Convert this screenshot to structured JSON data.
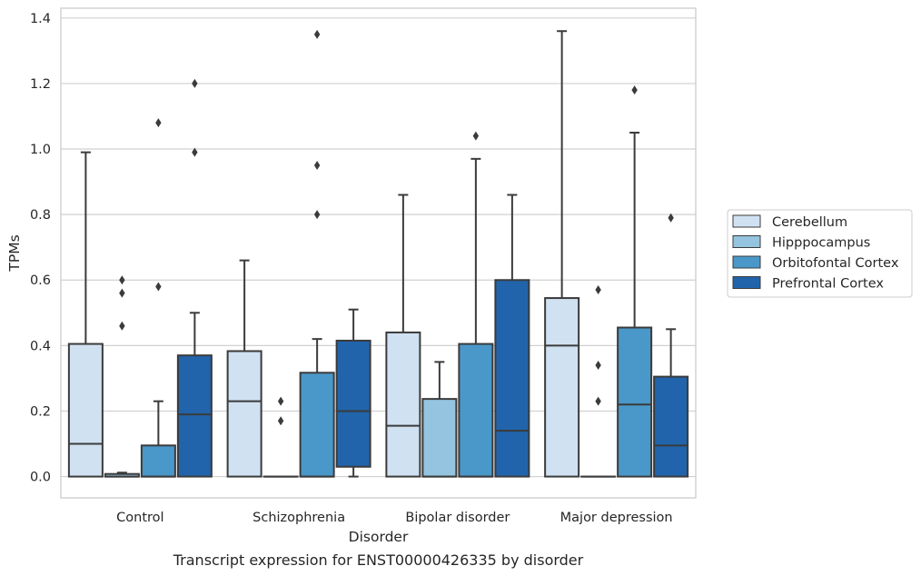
{
  "chart_data": {
    "type": "box",
    "caption": "Transcript expression for ENST00000426335 by disorder",
    "xlabel": "Disorder",
    "ylabel": "TPMs",
    "ylim": [
      -0.065,
      1.43
    ],
    "yticks": [
      0.0,
      0.2,
      0.4,
      0.6,
      0.8,
      1.0,
      1.2,
      1.4
    ],
    "ytick_labels": [
      "0.0",
      "0.2",
      "0.4",
      "0.6",
      "0.8",
      "1.0",
      "1.2",
      "1.4"
    ],
    "grid": "horizontal",
    "legend_position": "right",
    "categories": [
      "Control",
      "Schizophrenia",
      "Bipolar disorder",
      "Major depression"
    ],
    "series": [
      {
        "name": "Cerebellum",
        "color": "#d0e1f2",
        "boxes": [
          {
            "q1": 0.0,
            "median": 0.1,
            "q3": 0.405,
            "whisker_low": 0.0,
            "whisker_high": 0.99,
            "outliers": []
          },
          {
            "q1": 0.0,
            "median": 0.23,
            "q3": 0.383,
            "whisker_low": 0.0,
            "whisker_high": 0.66,
            "outliers": []
          },
          {
            "q1": 0.0,
            "median": 0.155,
            "q3": 0.44,
            "whisker_low": 0.0,
            "whisker_high": 0.86,
            "outliers": []
          },
          {
            "q1": 0.0,
            "median": 0.4,
            "q3": 0.545,
            "whisker_low": 0.0,
            "whisker_high": 1.36,
            "outliers": []
          }
        ]
      },
      {
        "name": "Hipppocampus",
        "color": "#94c4df",
        "boxes": [
          {
            "q1": 0.0,
            "median": 0.0,
            "q3": 0.008,
            "whisker_low": 0.0,
            "whisker_high": 0.012,
            "outliers": [
              0.46,
              0.56,
              0.6
            ]
          },
          {
            "q1": 0.0,
            "median": 0.0,
            "q3": 0.0,
            "whisker_low": 0.0,
            "whisker_high": 0.0,
            "outliers": [
              0.17,
              0.23
            ]
          },
          {
            "q1": 0.0,
            "median": 0.0,
            "q3": 0.237,
            "whisker_low": 0.0,
            "whisker_high": 0.35,
            "outliers": []
          },
          {
            "q1": 0.0,
            "median": 0.0,
            "q3": 0.0,
            "whisker_low": 0.0,
            "whisker_high": 0.0,
            "outliers": [
              0.23,
              0.34,
              0.57
            ]
          }
        ]
      },
      {
        "name": "Orbitofontal Cortex",
        "color": "#4a98c9",
        "boxes": [
          {
            "q1": 0.0,
            "median": 0.0,
            "q3": 0.095,
            "whisker_low": 0.0,
            "whisker_high": 0.23,
            "outliers": [
              0.58,
              1.08
            ]
          },
          {
            "q1": 0.0,
            "median": 0.0,
            "q3": 0.317,
            "whisker_low": 0.0,
            "whisker_high": 0.42,
            "outliers": [
              0.8,
              0.95,
              1.35
            ]
          },
          {
            "q1": 0.0,
            "median": 0.0,
            "q3": 0.405,
            "whisker_low": 0.0,
            "whisker_high": 0.97,
            "outliers": [
              1.04
            ]
          },
          {
            "q1": 0.0,
            "median": 0.22,
            "q3": 0.455,
            "whisker_low": 0.0,
            "whisker_high": 1.05,
            "outliers": [
              1.18
            ]
          }
        ]
      },
      {
        "name": "Prefrontal Cortex",
        "color": "#2164ab",
        "boxes": [
          {
            "q1": 0.0,
            "median": 0.19,
            "q3": 0.37,
            "whisker_low": 0.0,
            "whisker_high": 0.5,
            "outliers": [
              0.99,
              1.2
            ]
          },
          {
            "q1": 0.03,
            "median": 0.2,
            "q3": 0.415,
            "whisker_low": 0.0,
            "whisker_high": 0.51,
            "outliers": []
          },
          {
            "q1": 0.0,
            "median": 0.14,
            "q3": 0.6,
            "whisker_low": 0.0,
            "whisker_high": 0.86,
            "outliers": []
          },
          {
            "q1": 0.0,
            "median": 0.095,
            "q3": 0.305,
            "whisker_low": 0.0,
            "whisker_high": 0.45,
            "outliers": [
              0.79
            ]
          }
        ]
      }
    ]
  }
}
